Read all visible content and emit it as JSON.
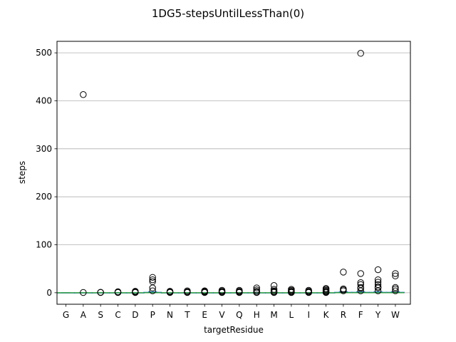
{
  "chart_data": {
    "type": "box",
    "title": "1DG5-stepsUntilLessThan(0)",
    "xlabel": "targetResidue",
    "ylabel": "steps",
    "ylim": [
      -24,
      524
    ],
    "yticks": [
      0,
      100,
      200,
      300,
      400,
      500
    ],
    "grid": "y",
    "colors": {
      "box": "#1f77b4",
      "median": "#2ca02c",
      "outlier": "#000000",
      "grid": "#b0b0b0"
    },
    "categories": [
      "G",
      "A",
      "S",
      "C",
      "D",
      "P",
      "N",
      "T",
      "E",
      "V",
      "Q",
      "H",
      "M",
      "L",
      "I",
      "K",
      "R",
      "F",
      "Y",
      "W"
    ],
    "boxes": [
      {
        "category": "G",
        "q1": 0,
        "median": 0,
        "q3": 0,
        "whisker_low": 0,
        "whisker_high": 0,
        "outliers": []
      },
      {
        "category": "A",
        "q1": 0,
        "median": 0,
        "q3": 0,
        "whisker_low": 0,
        "whisker_high": 0,
        "outliers": [
          413,
          0.5
        ]
      },
      {
        "category": "S",
        "q1": 0,
        "median": 0,
        "q3": 0,
        "whisker_low": 0,
        "whisker_high": 0,
        "outliers": [
          0.5,
          1
        ]
      },
      {
        "category": "C",
        "q1": 0,
        "median": 0,
        "q3": 0,
        "whisker_low": 0,
        "whisker_high": 0,
        "outliers": [
          0.5,
          1,
          2
        ]
      },
      {
        "category": "D",
        "q1": 0,
        "median": 0,
        "q3": 0,
        "whisker_low": 0,
        "whisker_high": 0,
        "outliers": [
          0.5,
          1,
          2,
          3
        ]
      },
      {
        "category": "P",
        "q1": 0,
        "median": 0,
        "q3": 1,
        "whisker_low": 0,
        "whisker_high": 2,
        "outliers": [
          4,
          10,
          23,
          27,
          32
        ]
      },
      {
        "category": "N",
        "q1": 0,
        "median": 0,
        "q3": 0,
        "whisker_low": 0,
        "whisker_high": 0,
        "outliers": [
          0.5,
          1,
          2,
          3
        ]
      },
      {
        "category": "T",
        "q1": 0,
        "median": 0,
        "q3": 0,
        "whisker_low": 0,
        "whisker_high": 0,
        "outliers": [
          0.5,
          1,
          2,
          4
        ]
      },
      {
        "category": "E",
        "q1": 0,
        "median": 0,
        "q3": 0,
        "whisker_low": 0,
        "whisker_high": 0,
        "outliers": [
          0.5,
          1,
          2,
          3,
          4
        ]
      },
      {
        "category": "V",
        "q1": 0,
        "median": 0,
        "q3": 0,
        "whisker_low": 0,
        "whisker_high": 0,
        "outliers": [
          0.5,
          1,
          2,
          3,
          5
        ]
      },
      {
        "category": "Q",
        "q1": 0,
        "median": 0,
        "q3": 0,
        "whisker_low": 0,
        "whisker_high": 0,
        "outliers": [
          0.5,
          1,
          2,
          3,
          5
        ]
      },
      {
        "category": "H",
        "q1": 0,
        "median": 0,
        "q3": 0,
        "whisker_low": 0,
        "whisker_high": 0,
        "outliers": [
          0.5,
          1,
          3,
          6,
          10
        ]
      },
      {
        "category": "M",
        "q1": 0,
        "median": 0,
        "q3": 0,
        "whisker_low": 0,
        "whisker_high": 0,
        "outliers": [
          0.5,
          1,
          2,
          4,
          7,
          15
        ]
      },
      {
        "category": "L",
        "q1": 0,
        "median": 0,
        "q3": 0,
        "whisker_low": 0,
        "whisker_high": 0,
        "outliers": [
          0.5,
          1,
          2,
          3,
          5,
          7
        ]
      },
      {
        "category": "I",
        "q1": 0,
        "median": 0,
        "q3": 0,
        "whisker_low": 0,
        "whisker_high": 0,
        "outliers": [
          0.5,
          1,
          2,
          3,
          5
        ]
      },
      {
        "category": "K",
        "q1": 0,
        "median": 0,
        "q3": 0,
        "whisker_low": 0,
        "whisker_high": 0,
        "outliers": [
          0.5,
          1,
          2,
          3,
          5,
          7,
          9
        ]
      },
      {
        "category": "R",
        "q1": 0,
        "median": 0,
        "q3": 1,
        "whisker_low": 0,
        "whisker_high": 2,
        "outliers": [
          4,
          6,
          8,
          43
        ]
      },
      {
        "category": "F",
        "q1": 0,
        "median": 0,
        "q3": 1,
        "whisker_low": 0,
        "whisker_high": 2,
        "outliers": [
          4,
          9,
          11,
          17,
          21,
          40,
          499
        ]
      },
      {
        "category": "Y",
        "q1": 0,
        "median": 0,
        "q3": 1,
        "whisker_low": 0,
        "whisker_high": 2,
        "outliers": [
          4,
          10,
          12,
          17,
          22,
          27,
          48
        ]
      },
      {
        "category": "W",
        "q1": 0,
        "median": 0,
        "q3": 1,
        "whisker_low": 0,
        "whisker_high": 2,
        "outliers": [
          4,
          8,
          11,
          35,
          40
        ]
      }
    ]
  }
}
